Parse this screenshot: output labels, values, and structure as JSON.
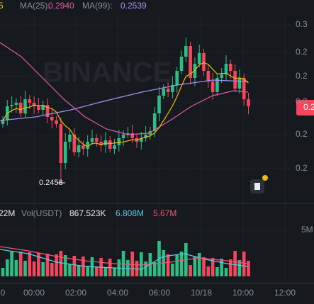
{
  "legend": {
    "ma7_value_fragment": "5",
    "ma25_label": "MA(25):",
    "ma25_value": "0.2940",
    "ma99_label": "MA(99):",
    "ma99_value": "0.2539"
  },
  "watermark": "BINANCE",
  "price_axis": [
    "0.3",
    "0.2",
    "0.2",
    "0.2",
    "0.2",
    "0.2"
  ],
  "price_tag": "0.2",
  "low_marker": "0.2458",
  "volume": {
    "fragment": "22M",
    "label": "Vol(USDT)",
    "value": "867.523K",
    "ma1": "6.808M",
    "ma2": "5.67M",
    "axis": "5M"
  },
  "time_axis": [
    "0",
    "00:00",
    "02:00",
    "04:00",
    "06:00",
    "10/18",
    "10:00",
    "12:00"
  ]
}
